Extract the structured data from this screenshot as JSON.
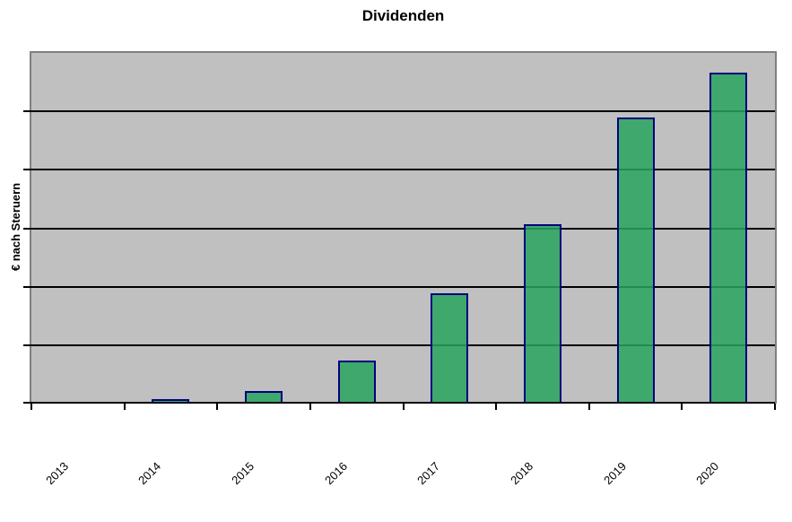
{
  "chart_data": {
    "type": "bar",
    "title": "Dividenden",
    "xlabel": "",
    "ylabel": "€ nach Steruern",
    "categories": [
      "2013",
      "2014",
      "2015",
      "2016",
      "2017",
      "2018",
      "2019",
      "2020"
    ],
    "values": [
      0,
      0.08,
      0.21,
      0.73,
      1.89,
      3.07,
      4.89,
      5.66
    ],
    "value_units": "relative gridline units (no numeric y-axis tick labels shown)",
    "ylim": [
      0,
      6
    ],
    "gridlines": "horizontal, 6 equal divisions, black",
    "y_tick_labels": "none",
    "x_label_rotation_deg": -45,
    "legend": "none",
    "colors": {
      "bar_fill": "#28a35e",
      "bar_fill_opacity": 0.85,
      "bar_border": "#000080",
      "plot_background": "#c0c0c0",
      "plot_border": "#808080",
      "gridline": "#000000",
      "axis": "#000000",
      "text": "#000000",
      "page_background": "#ffffff"
    }
  }
}
